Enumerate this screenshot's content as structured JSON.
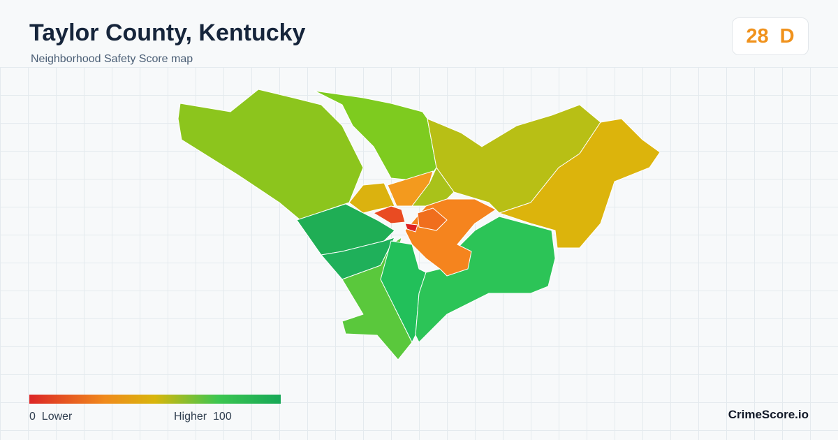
{
  "header": {
    "title": "Taylor County, Kentucky",
    "subtitle": "Neighborhood Safety Score map"
  },
  "score": {
    "value": "28",
    "grade": "D"
  },
  "legend": {
    "min": "0",
    "low_label": "Lower",
    "high_label": "Higher",
    "max": "100"
  },
  "brand": "CrimeScore.io"
}
